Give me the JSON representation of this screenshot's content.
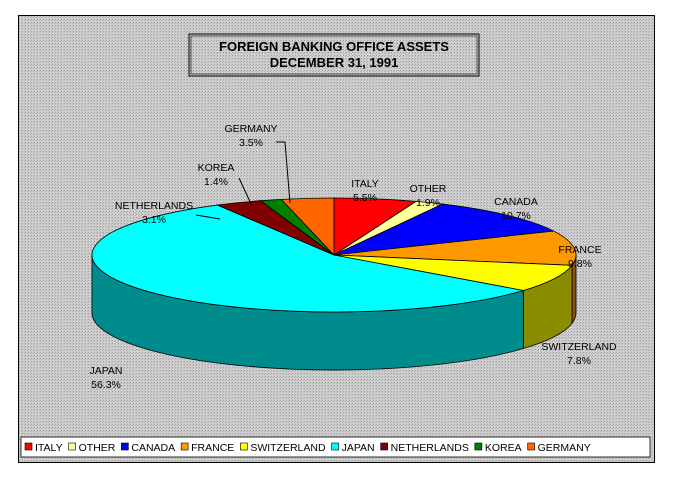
{
  "chart_data": {
    "type": "pie",
    "title_lines": [
      "FOREIGN BANKING OFFICE ASSETS",
      "DECEMBER 31, 1991"
    ],
    "slices": [
      {
        "name": "ITALY",
        "value": 5.5,
        "label": "5.5%",
        "color": "#ff0000"
      },
      {
        "name": "OTHER",
        "value": 1.9,
        "label": "1.9%",
        "color": "#ffff99"
      },
      {
        "name": "CANADA",
        "value": 10.7,
        "label": "10.7%",
        "color": "#0000ff"
      },
      {
        "name": "FRANCE",
        "value": 9.8,
        "label": "9.8%",
        "color": "#ff9900"
      },
      {
        "name": "SWITZERLAND",
        "value": 7.8,
        "label": "7.8%",
        "color": "#ffff00"
      },
      {
        "name": "JAPAN",
        "value": 56.3,
        "label": "56.3%",
        "color": "#00ffff"
      },
      {
        "name": "NETHERLANDS",
        "value": 3.1,
        "label": "3.1%",
        "color": "#800000"
      },
      {
        "name": "KOREA",
        "value": 1.4,
        "label": "1.4%",
        "color": "#008000"
      },
      {
        "name": "GERMANY",
        "value": 3.5,
        "label": "3.5%",
        "color": "#ff6600"
      }
    ],
    "legend_position": "bottom",
    "background_color": "#c8c8c8"
  }
}
